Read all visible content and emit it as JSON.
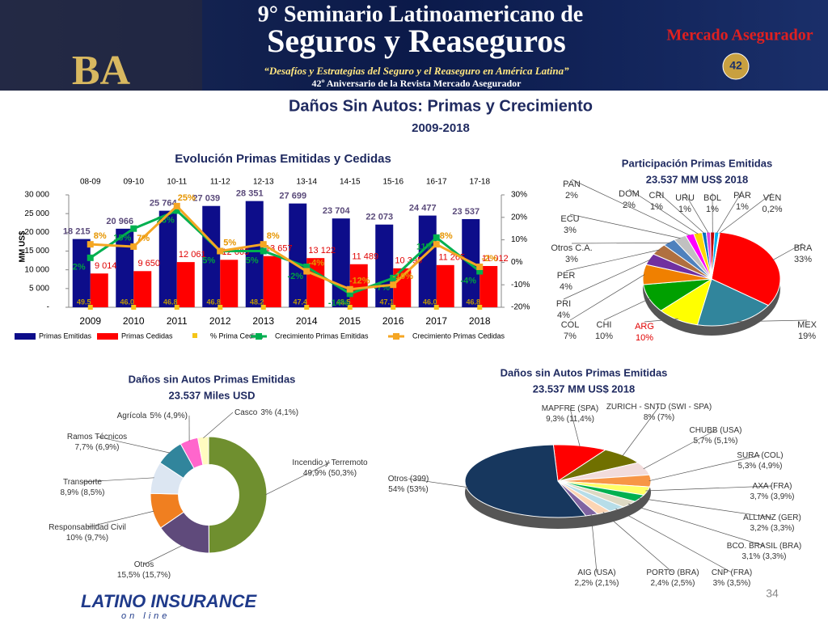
{
  "header": {
    "line1": "9° Seminario Latinoamericano de",
    "line2": "Seguros y Reaseguros",
    "tagline": "“Desafíos y Estrategias del Seguro y el Reaseguro en América Latina”",
    "anniversary": "42º Aniversario de la Revista Mercado Asegurador",
    "city": "BA",
    "brand": "Mercado Asegurador",
    "badge": "42"
  },
  "title": "Daños Sin Autos: Primas y Crecimiento",
  "subtitle": "2009-2018",
  "footer": {
    "logo": "LATINO INSURANCE",
    "logo_sub": "on line",
    "page": "34"
  },
  "chart_data": [
    {
      "type": "combo",
      "title": "Evolución Primas Emitidas y Cedidas",
      "y_label": "MM US$",
      "categories": [
        "2009",
        "2010",
        "2011",
        "2012",
        "2013",
        "2014",
        "2015",
        "2016",
        "2017",
        "2018"
      ],
      "periods": [
        "08-09",
        "09-10",
        "10-11",
        "11-12",
        "12-13",
        "13-14",
        "14-15",
        "15-16",
        "16-17",
        "17-18"
      ],
      "ylim": [
        0,
        30000
      ],
      "yticks": [
        {
          "value": 0,
          "label": "-"
        },
        {
          "value": 5000,
          "label": "5 000"
        },
        {
          "value": 10000,
          "label": "10 000"
        },
        {
          "value": 15000,
          "label": "15 000"
        },
        {
          "value": 20000,
          "label": "20 000"
        },
        {
          "value": 25000,
          "label": "25 000"
        },
        {
          "value": 30000,
          "label": "30 000"
        }
      ],
      "y2lim": [
        -20,
        30
      ],
      "y2ticks": [
        {
          "value": -20,
          "label": "-20%"
        },
        {
          "value": -10,
          "label": "-10%"
        },
        {
          "value": 0,
          "label": "0%"
        },
        {
          "value": 10,
          "label": "10%"
        },
        {
          "value": 20,
          "label": "20%"
        },
        {
          "value": 30,
          "label": "30%"
        }
      ],
      "series": [
        {
          "name": "Primas Emitidas",
          "kind": "bar",
          "color": "#0d0d8a",
          "values": [
            18215,
            20966,
            25764,
            27039,
            28351,
            27699,
            23704,
            22073,
            24477,
            23537
          ],
          "value_labels": [
            "18 215",
            "20 966",
            "25 764",
            "27 039",
            "28 351",
            "27 699",
            "23 704",
            "22 073",
            "24 477",
            "23 537"
          ]
        },
        {
          "name": "Primas Cedidas",
          "kind": "bar",
          "color": "#ff0000",
          "values": [
            9014,
            9650,
            12061,
            12665,
            13657,
            13122,
            11489,
            10395,
            11265,
            11012
          ],
          "value_labels": [
            "9 014",
            "9 650",
            "12 061",
            "12 665",
            "13 657",
            "13 122",
            "11 489",
            "10 395",
            "11 265",
            "11 012"
          ]
        },
        {
          "name": "% Prima Cedida",
          "kind": "point",
          "color": "#f5c518",
          "values": [
            49.5,
            46.0,
            46.8,
            46.8,
            48.2,
            47.4,
            48.5,
            47.1,
            46.0,
            46.8
          ],
          "value_labels": [
            "49.5",
            "46.0",
            "46.8",
            "46.8",
            "48.2",
            "47.4",
            "48.5",
            "47.1",
            "46.0",
            "46.8"
          ]
        },
        {
          "name": "Crecimiento Primas Emitidas",
          "kind": "line",
          "axis": "y2",
          "color": "#00b050",
          "values": [
            2,
            15,
            23,
            5,
            5,
            -2,
            -14,
            -7,
            11,
            -4
          ],
          "value_labels": [
            "2%",
            "15%",
            "23%",
            "5%",
            "5%",
            "-2%",
            "-14%",
            "-7%",
            "11%",
            "-4%"
          ]
        },
        {
          "name": "Crecimiento Primas Cedidas",
          "kind": "line",
          "axis": "y2",
          "color": "#f5a623",
          "values": [
            8,
            7,
            25,
            5,
            8,
            -4,
            -12,
            -10,
            8,
            -2
          ],
          "value_labels": [
            "8%",
            "7%",
            "25%",
            "5%",
            "8%",
            "-4%",
            "-12%",
            "-10%",
            "8%",
            "-2%"
          ]
        }
      ]
    },
    {
      "type": "pie",
      "title": "Participación Primas Emitidas",
      "subtitle": "23.537 MM US$  2018",
      "categories": [
        "BRA",
        "MEX",
        "ARG",
        "CHI",
        "COL",
        "PRI",
        "PER",
        "Otros C.A.",
        "ECU",
        "PAN",
        "DOM",
        "CRI",
        "URU",
        "BOL",
        "PAR",
        "VEN"
      ],
      "values": [
        33,
        19,
        10,
        10,
        7,
        4,
        4,
        3,
        3,
        2,
        2,
        1,
        1,
        1,
        1,
        0.2
      ],
      "value_labels": [
        "33%",
        "19%",
        "10%",
        "10%",
        "7%",
        "4%",
        "4%",
        "3%",
        "3%",
        "2%",
        "2%",
        "1%",
        "1%",
        "1%",
        "1%",
        "0,2%"
      ],
      "colors": [
        "#ff0000",
        "#31859c",
        "#ffff00",
        "#00a000",
        "#f08000",
        "#7030a0",
        "#b07040",
        "#4f81bd",
        "#c0c0c0",
        "#ff00ff",
        "#ffd700",
        "#0070c0",
        "#e040e0",
        "#c00000",
        "#00b0f0",
        "#92d050"
      ]
    },
    {
      "type": "donut",
      "title": "Daños sin Autos Primas Emitidas",
      "subtitle": "23.537 Miles USD",
      "categories": [
        "Incendio y Terremoto",
        "Otros",
        "Responsabilidad Civil",
        "Transporte",
        "Ramos Técnicos",
        "Agrícola",
        "Casco"
      ],
      "values": [
        49.9,
        15.5,
        10,
        8.9,
        7.7,
        5,
        3
      ],
      "value_labels": [
        "49,9% (50,3%)",
        "15,5% (15,7%)",
        "10% (9,7%)",
        "8,9% (8,5%)",
        "7,7% (6,9%)",
        "5% (4,9%)",
        "3% (4,1%)"
      ],
      "colors": [
        "#6f8f2f",
        "#5f4a7b",
        "#f07f20",
        "#dce6f2",
        "#31859c",
        "#ff66cc",
        "#fffbc0"
      ]
    },
    {
      "type": "pie",
      "title": "Daños sin Autos Primas Emitidas",
      "subtitle": "23.537 MM US$ 2018",
      "categories": [
        "MAPFRE (SPA)",
        "ZURICH - SNTD (SWI - SPA)",
        "CHUBB (USA)",
        "SURA (COL)",
        "AXA (FRA)",
        "ALLIANZ (GER)",
        "BCO. BRASIL (BRA)",
        "CNP (FRA)",
        "PORTO (BRA)",
        "AIG (USA)",
        "Otros (399)"
      ],
      "values": [
        9.3,
        8,
        5.7,
        5.3,
        3.7,
        3.2,
        3.1,
        3,
        2.4,
        2.2,
        54
      ],
      "value_labels": [
        "9,3% (11,4%)",
        "8% (7%)",
        "5,7% (5,1%)",
        "5,3% (4,9%)",
        "3,7% (3,9%)",
        "3,2% (3,3%)",
        "3,1% (3,3%)",
        "3% (3,5%)",
        "2,4% (2,5%)",
        "2,2% (2,1%)",
        "54% (53%)"
      ],
      "colors": [
        "#ff0000",
        "#707000",
        "#f2dcdb",
        "#f79646",
        "#ffff66",
        "#00b050",
        "#ddd9c3",
        "#b7dde8",
        "#fcd5b4",
        "#8064a2",
        "#17375e"
      ]
    }
  ]
}
